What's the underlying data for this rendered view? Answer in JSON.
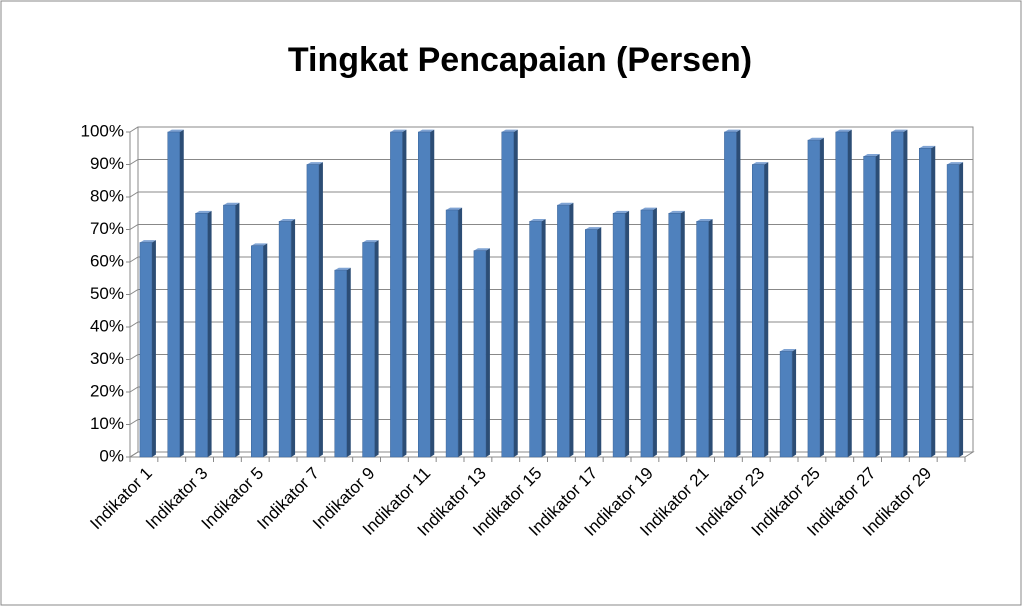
{
  "chart_data": {
    "type": "bar",
    "title": "Tingkat Pencapaian (Persen)",
    "categories": [
      "Indikator 1",
      null,
      "Indikator 3",
      null,
      "Indikator 5",
      null,
      "Indikator 7",
      null,
      "Indikator 9",
      null,
      "Indikator 11",
      null,
      "Indikator 13",
      null,
      "Indikator 15",
      null,
      "Indikator 17",
      null,
      "Indikator 19",
      null,
      "Indikator 21",
      null,
      "Indikator 23",
      null,
      "Indikator 25",
      null,
      "Indikator 27",
      null,
      "Indikator 29",
      null
    ],
    "values": [
      66,
      100,
      75,
      77.5,
      65,
      72.5,
      90,
      57.5,
      66,
      100,
      100,
      76,
      63.5,
      100,
      72.5,
      77.5,
      70,
      75,
      76,
      75,
      72.5,
      100,
      90,
      32.5,
      97.5,
      100,
      92.5,
      100,
      95,
      90
    ],
    "color": "#4f81bd",
    "ylim": [
      0,
      100
    ],
    "yticks": [
      {
        "value": 0,
        "label": "0%"
      },
      {
        "value": 10,
        "label": "10%"
      },
      {
        "value": 20,
        "label": "20%"
      },
      {
        "value": 30,
        "label": "30%"
      },
      {
        "value": 40,
        "label": "40%"
      },
      {
        "value": 50,
        "label": "50%"
      },
      {
        "value": 60,
        "label": "60%"
      },
      {
        "value": 70,
        "label": "70%"
      },
      {
        "value": 80,
        "label": "80%"
      },
      {
        "value": 90,
        "label": "90%"
      },
      {
        "value": 100,
        "label": "100%"
      }
    ],
    "grid": true
  }
}
